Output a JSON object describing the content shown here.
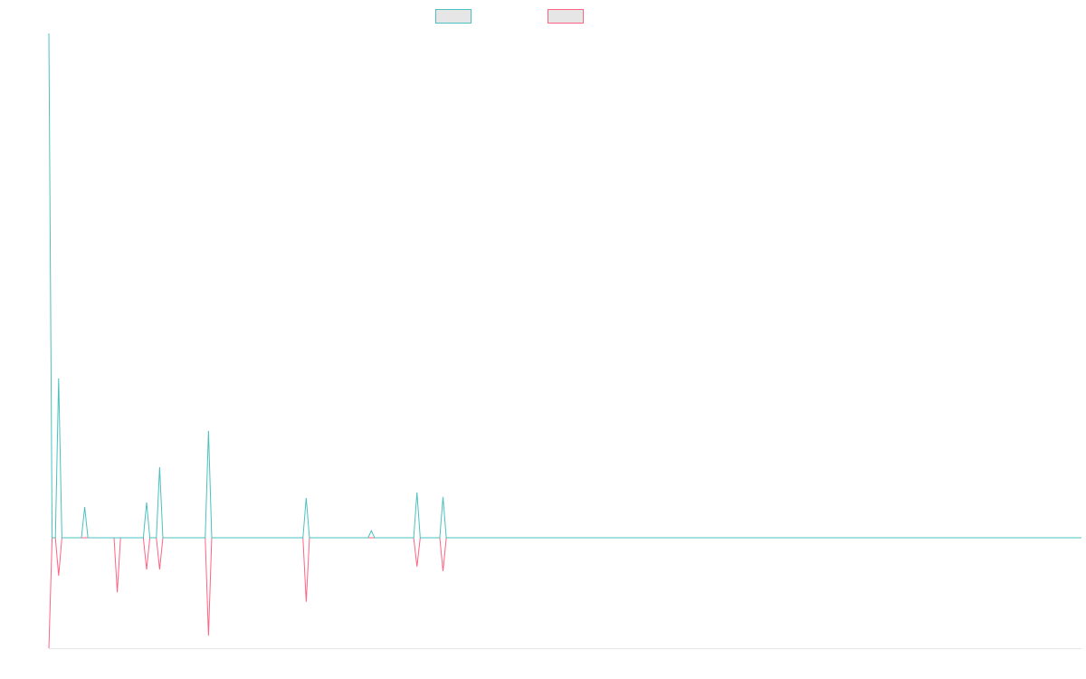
{
  "chart_data": {
    "type": "line",
    "x": [
      0,
      1,
      2,
      3,
      4,
      10,
      11,
      12,
      20,
      21,
      22,
      29,
      30,
      31,
      33,
      34,
      35,
      48,
      49,
      50,
      78,
      79,
      80,
      98,
      99,
      100,
      112,
      113,
      114,
      120,
      121,
      122,
      317
    ],
    "xlim": [
      0,
      317
    ],
    "ylim": [
      -21.9,
      100
    ],
    "series": [
      {
        "color": "#4bc0c0",
        "values": [
          100,
          0,
          0,
          31.6,
          0,
          0,
          6.1,
          0,
          0,
          0,
          0,
          0,
          7.0,
          0,
          0,
          14.0,
          0,
          0,
          21.2,
          0,
          0,
          7.9,
          0,
          0,
          1.4,
          0,
          0,
          9.0,
          0,
          0,
          8.1,
          0,
          0
        ]
      },
      {
        "color": "#ff6384",
        "values": [
          -21.9,
          0,
          0,
          -7.5,
          0,
          0,
          0,
          0,
          0,
          -10.8,
          0,
          0,
          -6.3,
          0,
          0,
          -6.3,
          0,
          0,
          -19.4,
          0,
          0,
          -12.7,
          0,
          0,
          0,
          0,
          0,
          -5.7,
          0,
          0,
          -6.6,
          0,
          0
        ]
      }
    ]
  }
}
